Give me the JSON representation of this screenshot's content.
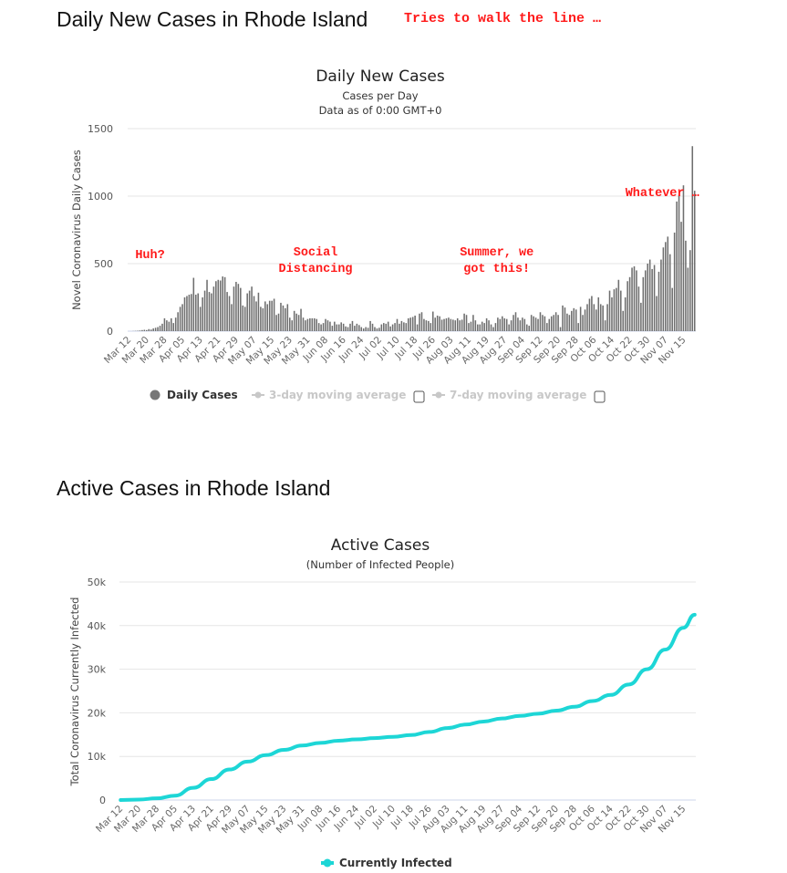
{
  "page": {
    "title1": "Daily New Cases in Rhode Island",
    "annotation_top": "Tries to walk the line …",
    "title2": "Active Cases in Rhode Island"
  },
  "colors": {
    "bars": "#6e6e6e",
    "active_line": "#1dd6d6",
    "annotation": "#ff1a1a",
    "legend_inactive": "#c8c8c8"
  },
  "chart_data": [
    {
      "type": "bar",
      "title": "Daily New Cases",
      "subtitle": "Cases per Day",
      "subtitle2": "Data as of 0:00 GMT+0",
      "ylabel": "Novel Coronavirus Daily Cases",
      "xlabel": "",
      "ylim": [
        0,
        1500
      ],
      "yticks": [
        0,
        500,
        1000,
        1500
      ],
      "start_date": "Mar 12",
      "tick_every_days": 8,
      "x_tick_labels": [
        "Mar 12",
        "Mar 20",
        "Mar 28",
        "Apr 05",
        "Apr 13",
        "Apr 21",
        "Apr 29",
        "May 07",
        "May 15",
        "May 23",
        "May 31",
        "Jun 08",
        "Jun 16",
        "Jun 24",
        "Jul 02",
        "Jul 10",
        "Jul 18",
        "Jul 26",
        "Aug 03",
        "Aug 11",
        "Aug 19",
        "Aug 27",
        "Sep 04",
        "Sep 12",
        "Sep 20",
        "Sep 28",
        "Oct 06",
        "Oct 14",
        "Oct 22",
        "Oct 30",
        "Nov 07",
        "Nov 15"
      ],
      "values": [
        0,
        0,
        1,
        2,
        3,
        5,
        8,
        10,
        8,
        15,
        12,
        20,
        25,
        30,
        40,
        55,
        95,
        80,
        70,
        95,
        60,
        100,
        140,
        180,
        200,
        250,
        260,
        270,
        275,
        395,
        270,
        280,
        180,
        250,
        300,
        380,
        290,
        280,
        330,
        370,
        380,
        375,
        405,
        400,
        290,
        260,
        200,
        330,
        365,
        350,
        320,
        190,
        180,
        280,
        300,
        330,
        260,
        220,
        285,
        180,
        170,
        220,
        200,
        225,
        225,
        240,
        120,
        130,
        210,
        190,
        170,
        200,
        100,
        80,
        150,
        130,
        120,
        165,
        100,
        80,
        90,
        95,
        95,
        95,
        90,
        60,
        50,
        60,
        90,
        80,
        70,
        40,
        70,
        50,
        50,
        65,
        55,
        35,
        30,
        55,
        75,
        40,
        55,
        45,
        30,
        20,
        30,
        25,
        75,
        55,
        30,
        20,
        25,
        50,
        60,
        55,
        70,
        35,
        50,
        60,
        90,
        55,
        75,
        65,
        60,
        95,
        100,
        105,
        115,
        50,
        130,
        140,
        90,
        80,
        75,
        60,
        145,
        100,
        115,
        110,
        85,
        90,
        95,
        100,
        90,
        85,
        80,
        95,
        80,
        85,
        130,
        120,
        60,
        70,
        120,
        80,
        50,
        50,
        70,
        60,
        95,
        80,
        50,
        30,
        60,
        100,
        90,
        110,
        95,
        90,
        50,
        80,
        120,
        140,
        100,
        80,
        100,
        90,
        50,
        40,
        120,
        110,
        100,
        90,
        140,
        120,
        110,
        60,
        90,
        110,
        120,
        140,
        120,
        30,
        190,
        175,
        130,
        120,
        150,
        170,
        160,
        60,
        180,
        120,
        160,
        200,
        240,
        260,
        200,
        160,
        250,
        200,
        190,
        80,
        200,
        300,
        250,
        310,
        320,
        380,
        300,
        150,
        250,
        370,
        400,
        470,
        480,
        450,
        330,
        210,
        400,
        450,
        500,
        530,
        460,
        490,
        260,
        440,
        530,
        620,
        660,
        700,
        570,
        320,
        730,
        960,
        1010,
        810,
        1080,
        670,
        470,
        600,
        1370,
        1040
      ],
      "annotations": [
        {
          "lines": [
            "Huh?"
          ],
          "date": "Mar 22",
          "value": 540
        },
        {
          "lines": [
            "Social",
            "Distancing"
          ],
          "date": "Jun 04",
          "value": 560
        },
        {
          "lines": [
            "Summer, we",
            "got this!"
          ],
          "date": "Aug 24",
          "value": 560
        },
        {
          "lines": [
            "Whatever …"
          ],
          "date": "Nov 06",
          "value": 1000
        }
      ],
      "legend": [
        {
          "label": "Daily Cases",
          "active": true
        },
        {
          "label": "3-day moving average",
          "active": false,
          "checkbox": false
        },
        {
          "label": "7-day moving average",
          "active": false,
          "checkbox": false
        }
      ]
    },
    {
      "type": "line",
      "title": "Active Cases",
      "subtitle": "(Number of Infected People)",
      "ylabel": "Total Coronavirus Currently Infected",
      "ylim": [
        0,
        50000
      ],
      "yticks": [
        0,
        10000,
        20000,
        30000,
        40000,
        50000
      ],
      "ytick_labels": [
        "0",
        "10k",
        "20k",
        "30k",
        "40k",
        "50k"
      ],
      "x_tick_labels": [
        "Mar 12",
        "Mar 20",
        "Mar 28",
        "Apr 05",
        "Apr 13",
        "Apr 21",
        "Apr 29",
        "May 07",
        "May 15",
        "May 23",
        "May 31",
        "Jun 08",
        "Jun 16",
        "Jun 24",
        "Jul 02",
        "Jul 10",
        "Jul 18",
        "Jul 26",
        "Aug 03",
        "Aug 11",
        "Aug 19",
        "Aug 27",
        "Sep 04",
        "Sep 12",
        "Sep 20",
        "Sep 28",
        "Oct 06",
        "Oct 14",
        "Oct 22",
        "Oct 30",
        "Nov 07",
        "Nov 15"
      ],
      "series": [
        {
          "name": "Currently Infected",
          "x_days": [
            0,
            8,
            16,
            24,
            32,
            40,
            48,
            56,
            64,
            72,
            80,
            88,
            96,
            104,
            112,
            120,
            128,
            136,
            144,
            152,
            160,
            168,
            176,
            184,
            192,
            200,
            208,
            216,
            224,
            232,
            240,
            248,
            253
          ],
          "values": [
            0,
            100,
            400,
            1000,
            2800,
            4800,
            7000,
            8800,
            10300,
            11500,
            12500,
            13100,
            13600,
            13900,
            14200,
            14500,
            14900,
            15600,
            16500,
            17300,
            18000,
            18700,
            19300,
            19800,
            20500,
            21400,
            22700,
            24100,
            26500,
            30000,
            34500,
            39500,
            42500
          ]
        }
      ]
    }
  ]
}
